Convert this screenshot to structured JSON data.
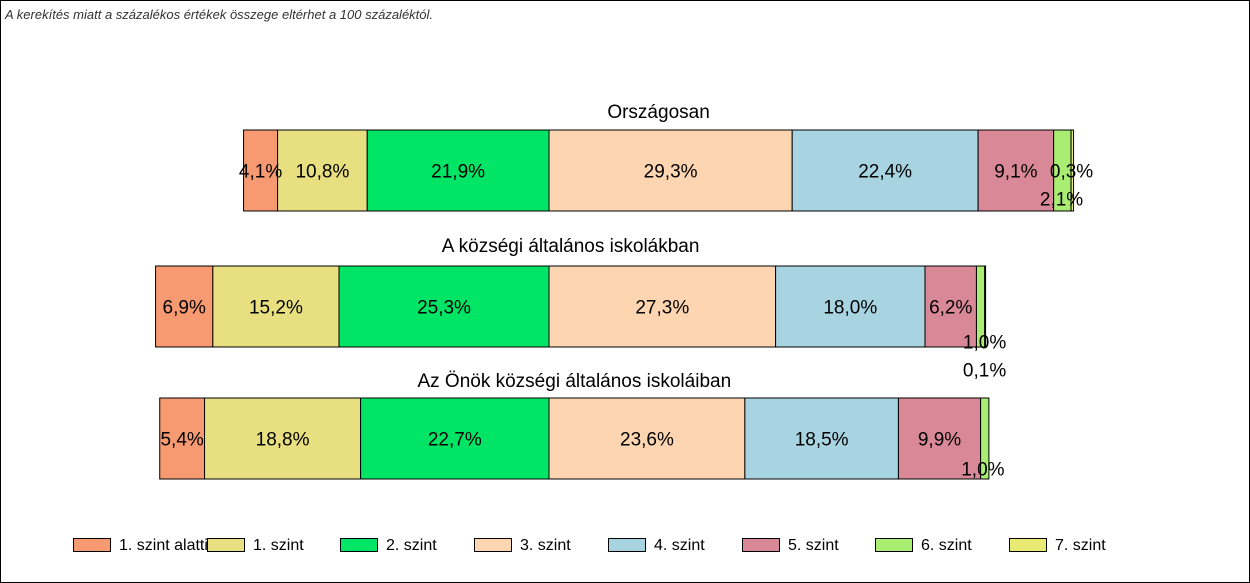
{
  "note": "A kerekítés miatt a  százalékos értékek összege eltérhet a 100 százaléktól.",
  "chart_data": {
    "type": "bar",
    "orientation": "horizontal-stacked",
    "unit": "%",
    "series": [
      {
        "name": "1. szint alatti",
        "color": "#f79a72"
      },
      {
        "name": "1. szint",
        "color": "#e8df80"
      },
      {
        "name": "2. szint",
        "color": "#00e566"
      },
      {
        "name": "3. szint",
        "color": "#fdd5b1"
      },
      {
        "name": "4. szint",
        "color": "#a8d3e1"
      },
      {
        "name": "5. szint",
        "color": "#d98898"
      },
      {
        "name": "6. szint",
        "color": "#a9ee72"
      },
      {
        "name": "7. szint",
        "color": "#e9ea73"
      }
    ],
    "groups": [
      {
        "title": "Országosan",
        "values": [
          4.1,
          10.8,
          21.9,
          29.3,
          22.4,
          9.1,
          2.1,
          0.3
        ],
        "labels": [
          "4,1%",
          "10,8%",
          "21,9%",
          "29,3%",
          "22,4%",
          "9,1%",
          "2,1%",
          "0,3%"
        ]
      },
      {
        "title": "A községi általános iskolákban",
        "values": [
          6.9,
          15.2,
          25.3,
          27.3,
          18.0,
          6.2,
          1.0,
          0.1
        ],
        "labels": [
          "6,9%",
          "15,2%",
          "25,3%",
          "27,3%",
          "18,0%",
          "6,2%",
          "1,0%",
          "0,1%"
        ]
      },
      {
        "title": "Az Önök községi általános iskoláiban",
        "values": [
          5.4,
          18.8,
          22.7,
          23.6,
          18.5,
          9.9,
          1.0,
          0.0
        ],
        "labels": [
          "5,4%",
          "18,8%",
          "22,7%",
          "23,6%",
          "18,5%",
          "9,9%",
          "1,0%",
          ""
        ]
      }
    ],
    "legend": {
      "position": "bottom"
    }
  }
}
